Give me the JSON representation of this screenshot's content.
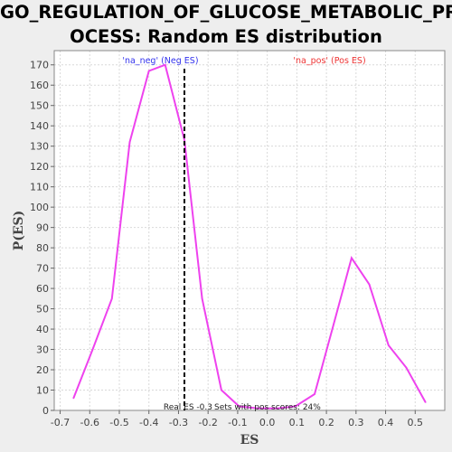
{
  "chart_data": {
    "type": "line",
    "title_lines": [
      "GO_REGULATION_OF_GLUCOSE_METABOLIC_PR",
      "OCESS: Random ES distribution"
    ],
    "xlabel": "ES",
    "ylabel": "P(ES)",
    "xlim": [
      -0.72,
      0.6
    ],
    "ylim": [
      0,
      177
    ],
    "x_ticks": [
      -0.7,
      -0.6,
      -0.5,
      -0.4,
      -0.3,
      -0.2,
      -0.1,
      0.0,
      0.1,
      0.2,
      0.3,
      0.4,
      0.5
    ],
    "x_tick_labels": [
      "-0.7",
      "-0.6",
      "-0.5",
      "-0.4",
      "-0.3",
      "-0.2",
      "-0.1",
      "0.0",
      "0.1",
      "0.2",
      "0.3",
      "0.4",
      "0.5"
    ],
    "y_ticks": [
      0,
      10,
      20,
      30,
      40,
      50,
      60,
      70,
      80,
      90,
      100,
      110,
      120,
      130,
      140,
      150,
      160,
      170
    ],
    "y_tick_labels": [
      "0",
      "10",
      "20",
      "30",
      "40",
      "50",
      "60",
      "70",
      "80",
      "90",
      "100",
      "110",
      "120",
      "130",
      "140",
      "150",
      "160",
      "170"
    ],
    "grid": true,
    "series": [
      {
        "color": "#ee42ee",
        "x": [
          -0.655,
          -0.59,
          -0.525,
          -0.465,
          -0.4,
          -0.345,
          -0.28,
          -0.22,
          -0.155,
          -0.095,
          -0.03,
          0.035,
          0.095,
          0.16,
          0.22,
          0.285,
          0.345,
          0.41,
          0.47,
          0.535
        ],
        "y": [
          6,
          30,
          55,
          132,
          167,
          170,
          133,
          55,
          10,
          2,
          1,
          1,
          2,
          8,
          40,
          75,
          62,
          32,
          21,
          4
        ]
      }
    ],
    "real_es": {
      "value": -0.28,
      "label": "Real ES -0.3"
    },
    "annotations": {
      "neg": {
        "text": "'na_neg' (Neg ES)",
        "color": "#3333ee",
        "x": -0.3
      },
      "pos": {
        "text": "'na_pos' (Pos ES)",
        "color": "#ee3333",
        "x": 0.18
      },
      "pos_scores": {
        "text": "Sets with pos scores: 24%"
      }
    }
  }
}
